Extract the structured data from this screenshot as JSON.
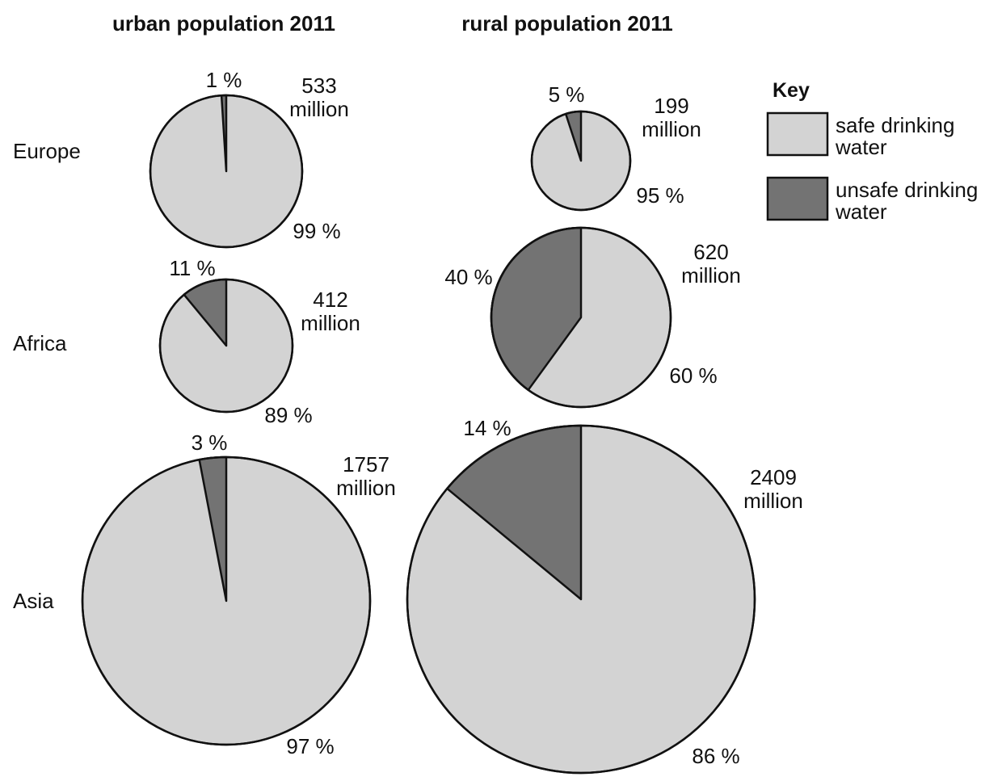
{
  "chart_data": {
    "type": "pie",
    "titles": [
      "urban population 2011",
      "rural population 2011"
    ],
    "key": {
      "title": "Key",
      "entries": [
        {
          "label_lines": [
            "safe drinking",
            "water"
          ],
          "color": "#d3d3d3"
        },
        {
          "label_lines": [
            "unsafe drinking",
            "water"
          ],
          "color": "#737373"
        }
      ]
    },
    "regions": [
      "Europe",
      "Africa",
      "Asia"
    ],
    "pies": [
      {
        "group": "urban population 2011",
        "region": "Europe",
        "total": "533",
        "unit": "million",
        "safe_pct": 99,
        "unsafe_pct": 1,
        "safe_label": "99 %",
        "unsafe_label": "1 %"
      },
      {
        "group": "rural population 2011",
        "region": "Europe",
        "total": "199",
        "unit": "million",
        "safe_pct": 95,
        "unsafe_pct": 5,
        "safe_label": "95 %",
        "unsafe_label": "5 %"
      },
      {
        "group": "urban population 2011",
        "region": "Africa",
        "total": "412",
        "unit": "million",
        "safe_pct": 89,
        "unsafe_pct": 11,
        "safe_label": "89 %",
        "unsafe_label": "11 %"
      },
      {
        "group": "rural population 2011",
        "region": "Africa",
        "total": "620",
        "unit": "million",
        "safe_pct": 60,
        "unsafe_pct": 40,
        "safe_label": "60 %",
        "unsafe_label": "40 %"
      },
      {
        "group": "urban population 2011",
        "region": "Asia",
        "total": "1757",
        "unit": "million",
        "safe_pct": 97,
        "unsafe_pct": 3,
        "safe_label": "97 %",
        "unsafe_label": "3 %"
      },
      {
        "group": "rural population 2011",
        "region": "Asia",
        "total": "2409",
        "unit": "million",
        "safe_pct": 86,
        "unsafe_pct": 14,
        "safe_label": "86 %",
        "unsafe_label": "14 %"
      }
    ]
  }
}
